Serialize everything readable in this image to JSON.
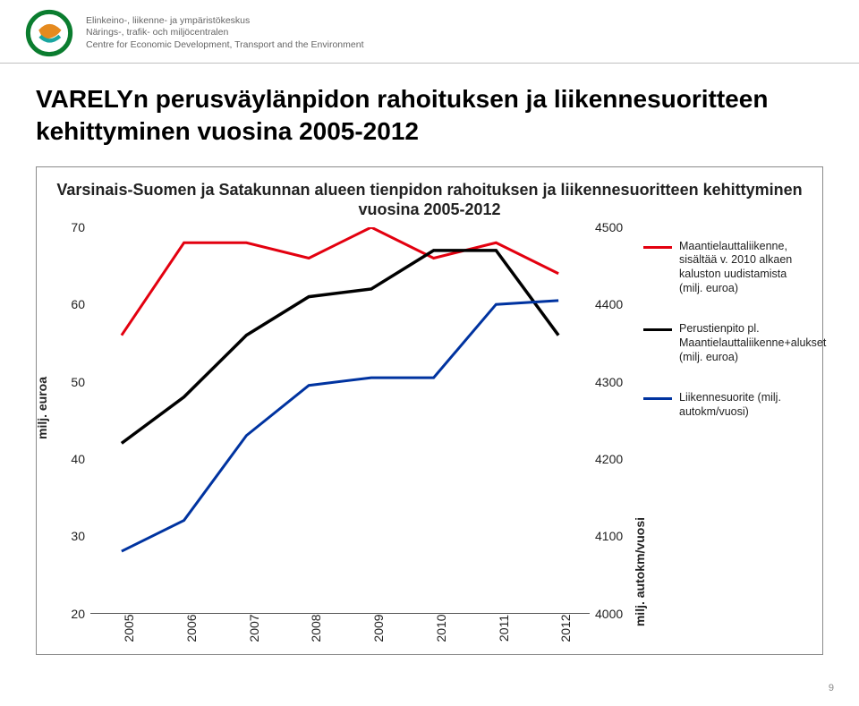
{
  "header": {
    "org_fi": "Elinkeino-, liikenne- ja ympäristökeskus",
    "org_sv": "Närings-, trafik- och miljöcentralen",
    "org_en": "Centre for Economic Development, Transport and the Environment"
  },
  "title": "VARELYn perusväylänpidon rahoituksen ja liikennesuoritteen kehittyminen vuosina 2005-2012",
  "chart": {
    "inner_title": "Varsinais-Suomen ja Satakunnan alueen tienpidon rahoituksen ja liikennesuoritteen kehittyminen vuosina 2005-2012",
    "type": "multi-axis-line",
    "x_categories": [
      "2005",
      "2006",
      "2007",
      "2008",
      "2009",
      "2010",
      "2011",
      "2012"
    ],
    "x_label_fontsize": 14,
    "x_label_rotation": -90,
    "left_axis": {
      "label": "milj. euroa",
      "min": 20,
      "max": 70,
      "step": 10,
      "ticks": [
        20,
        30,
        40,
        50,
        60,
        70
      ],
      "fontsize": 14
    },
    "right_axis": {
      "label": "milj. autokm/vuosi",
      "min": 4000,
      "max": 4500,
      "step": 100,
      "ticks": [
        4000,
        4100,
        4200,
        4300,
        4400,
        4500
      ],
      "fontsize": 14
    },
    "series": [
      {
        "key": "red",
        "name": "Maantielauttaliikenne, sisältää v. 2010 alkaen kaluston uudistamista (milj. euroa)",
        "axis": "left",
        "color": "#e3000f",
        "line_width": 3,
        "values": [
          56,
          68,
          68,
          66,
          70,
          66,
          68,
          64
        ]
      },
      {
        "key": "black",
        "name": "Perustienpito pl. Maantielauttaliikenne+alukset (milj. euroa)",
        "axis": "left",
        "color": "#000000",
        "line_width": 3.5,
        "values": [
          42,
          48,
          56,
          61,
          62,
          67,
          67,
          56
        ]
      },
      {
        "key": "blue",
        "name": "Liikennesuorite (milj. autokm/vuosi)",
        "axis": "right",
        "color": "#0033a0",
        "line_width": 3,
        "values": [
          4080,
          4120,
          4230,
          4295,
          4305,
          4305,
          4400,
          4405
        ]
      }
    ],
    "background_color": "#ffffff",
    "grid": false,
    "legend_position": "right"
  },
  "page_number": "9",
  "logo_colors": {
    "dark_green": "#0b7d2f",
    "orange": "#e58a1f",
    "teal": "#1aa6a0"
  }
}
